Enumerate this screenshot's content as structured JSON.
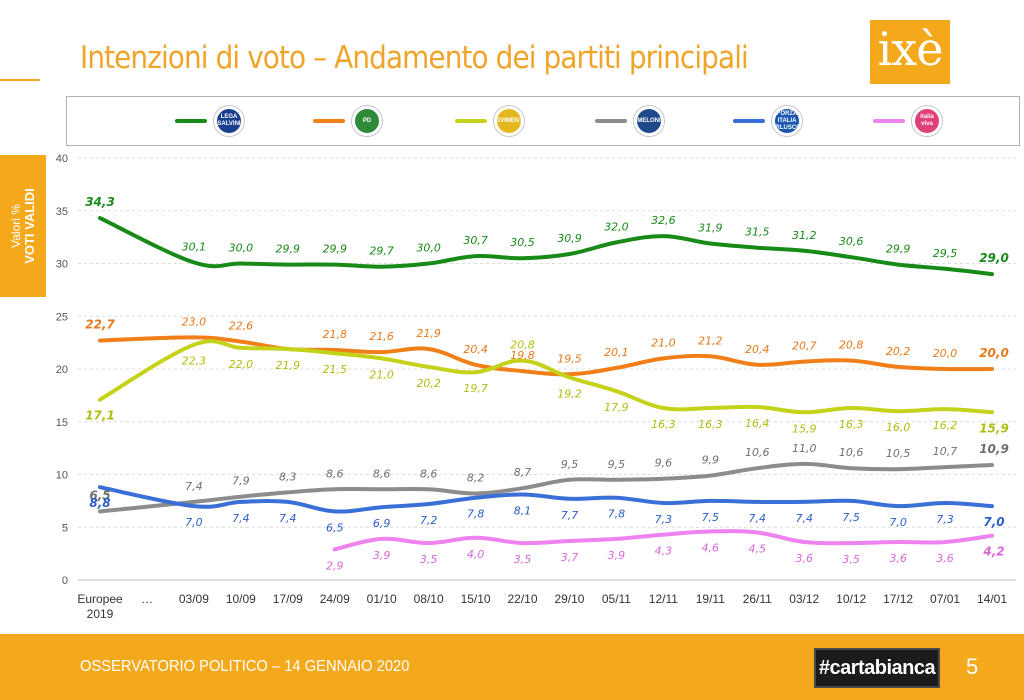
{
  "header": {
    "title": "Intenzioni di voto – Andamento dei partiti principali",
    "logo_text": "ixè"
  },
  "side_tab": {
    "line1": "Valori %",
    "line2": "VOTI VALIDI"
  },
  "legend": [
    {
      "series": "Lega",
      "badge_text": "LEGA SALVINI",
      "badge_bg": "#1a3f8f"
    },
    {
      "series": "PD",
      "badge_text": "PD",
      "badge_bg": "#2e8b3a"
    },
    {
      "series": "M5S",
      "badge_text": "MOVIMENTO",
      "badge_bg": "#e3b81f"
    },
    {
      "series": "FdI",
      "badge_text": "MELONI",
      "badge_bg": "#1e4a8a"
    },
    {
      "series": "FI",
      "badge_text": "FORZA ITALIA BERLUSCONI",
      "badge_bg": "#1a56b0"
    },
    {
      "series": "IV",
      "badge_text": "italia viva",
      "badge_bg": "#e0407a"
    }
  ],
  "footer": {
    "left_text": "OSSERVATORIO POLITICO – 14 GENNAIO 2020",
    "brand": "#cartabianca",
    "page_number": "5"
  },
  "chart_data": {
    "type": "line",
    "ylim": [
      0,
      40
    ],
    "yticks": [
      0,
      5,
      10,
      15,
      20,
      25,
      30,
      35,
      40
    ],
    "grid": true,
    "legend_position": "top",
    "categories": [
      "Europee 2019",
      "…",
      "03/09",
      "10/09",
      "17/09",
      "24/09",
      "01/10",
      "08/10",
      "15/10",
      "22/10",
      "29/10",
      "05/11",
      "12/11",
      "19/11",
      "26/11",
      "03/12",
      "10/12",
      "17/12",
      "07/01",
      "14/01"
    ],
    "series": [
      {
        "id": "Lega",
        "color": "#178a17",
        "label_color": "#178a17",
        "values": [
          34.3,
          null,
          30.1,
          30.0,
          29.9,
          29.9,
          29.7,
          30.0,
          30.7,
          30.5,
          30.9,
          32.0,
          32.6,
          31.9,
          31.5,
          31.2,
          30.6,
          29.9,
          29.5,
          29.0
        ],
        "labels": [
          "34,3",
          "",
          "30,1",
          "30,0",
          "29,9",
          "29,9",
          "29,7",
          "30,0",
          "30,7",
          "30,5",
          "30,9",
          "32,0",
          "32,6",
          "31,9",
          "31,5",
          "31,2",
          "30,6",
          "29,9",
          "29,5",
          "29,0"
        ]
      },
      {
        "id": "PD",
        "color": "#f07f1a",
        "label_color": "#e8781a",
        "values": [
          22.7,
          null,
          23.0,
          22.6,
          21.9,
          21.8,
          21.6,
          21.9,
          20.4,
          19.8,
          19.5,
          20.1,
          21.0,
          21.2,
          20.4,
          20.7,
          20.8,
          20.2,
          20.0,
          20.0
        ],
        "labels": [
          "22,7",
          "",
          "23,0",
          "22,6",
          "",
          "21,8",
          "21,6",
          "21,9",
          "20,4",
          "19,8",
          "19,5",
          "20,1",
          "21,0",
          "21,2",
          "20,4",
          "20,7",
          "20,8",
          "20,2",
          "20,0",
          "20,0"
        ]
      },
      {
        "id": "M5S",
        "color": "#c4d21a",
        "label_color": "#b0bd10",
        "values": [
          17.1,
          null,
          22.3,
          22.0,
          21.9,
          21.5,
          21.0,
          20.2,
          19.7,
          20.8,
          19.2,
          17.9,
          16.3,
          16.3,
          16.4,
          15.9,
          16.3,
          16.0,
          16.2,
          15.9
        ],
        "labels": [
          "17,1",
          "",
          "22,3",
          "22,0",
          "21,9",
          "21,5",
          "21,0",
          "20,2",
          "19,7",
          "20,8",
          "19,2",
          "17,9",
          "16,3",
          "16,3",
          "16,4",
          "15,9",
          "16,3",
          "16,0",
          "16,2",
          "15,9"
        ]
      },
      {
        "id": "FdI",
        "color": "#8c8c8c",
        "label_color": "#6f6f6f",
        "values": [
          6.5,
          null,
          7.4,
          7.9,
          8.3,
          8.6,
          8.6,
          8.6,
          8.2,
          8.7,
          9.5,
          9.5,
          9.6,
          9.9,
          10.6,
          11.0,
          10.6,
          10.5,
          10.7,
          10.9
        ],
        "labels": [
          "6,5",
          "",
          "7,4",
          "7,9",
          "8,3",
          "8,6",
          "8,6",
          "8,6",
          "8,2",
          "8,7",
          "9,5",
          "9,5",
          "9,6",
          "9,9",
          "10,6",
          "11,0",
          "10,6",
          "10,5",
          "10,7",
          "10,9"
        ]
      },
      {
        "id": "FI",
        "color": "#3a6fd8",
        "label_color": "#2a5fc8",
        "values": [
          8.8,
          null,
          7.0,
          7.4,
          7.4,
          6.5,
          6.9,
          7.2,
          7.8,
          8.1,
          7.7,
          7.8,
          7.3,
          7.5,
          7.4,
          7.4,
          7.5,
          7.0,
          7.3,
          7.0
        ],
        "labels": [
          "8,8",
          "",
          "7,0",
          "7,4",
          "7,4",
          "6,5",
          "6,9",
          "7,2",
          "7,8",
          "8,1",
          "7,7",
          "7,8",
          "7,3",
          "7,5",
          "7,4",
          "7,4",
          "7,5",
          "7,0",
          "7,3",
          "7,0"
        ]
      },
      {
        "id": "IV",
        "color": "#ee82ee",
        "label_color": "#d868d8",
        "values": [
          null,
          null,
          null,
          null,
          null,
          2.9,
          3.9,
          3.5,
          4.0,
          3.5,
          3.7,
          3.9,
          4.3,
          4.6,
          4.5,
          3.6,
          3.5,
          3.6,
          3.6,
          4.2
        ],
        "labels": [
          "",
          "",
          "",
          "",
          "",
          "2,9",
          "3,9",
          "3,5",
          "4,0",
          "3,5",
          "3,7",
          "3,9",
          "4,3",
          "4,6",
          "4,5",
          "3,6",
          "3,5",
          "3,6",
          "3,6",
          "4,2"
        ]
      }
    ]
  }
}
